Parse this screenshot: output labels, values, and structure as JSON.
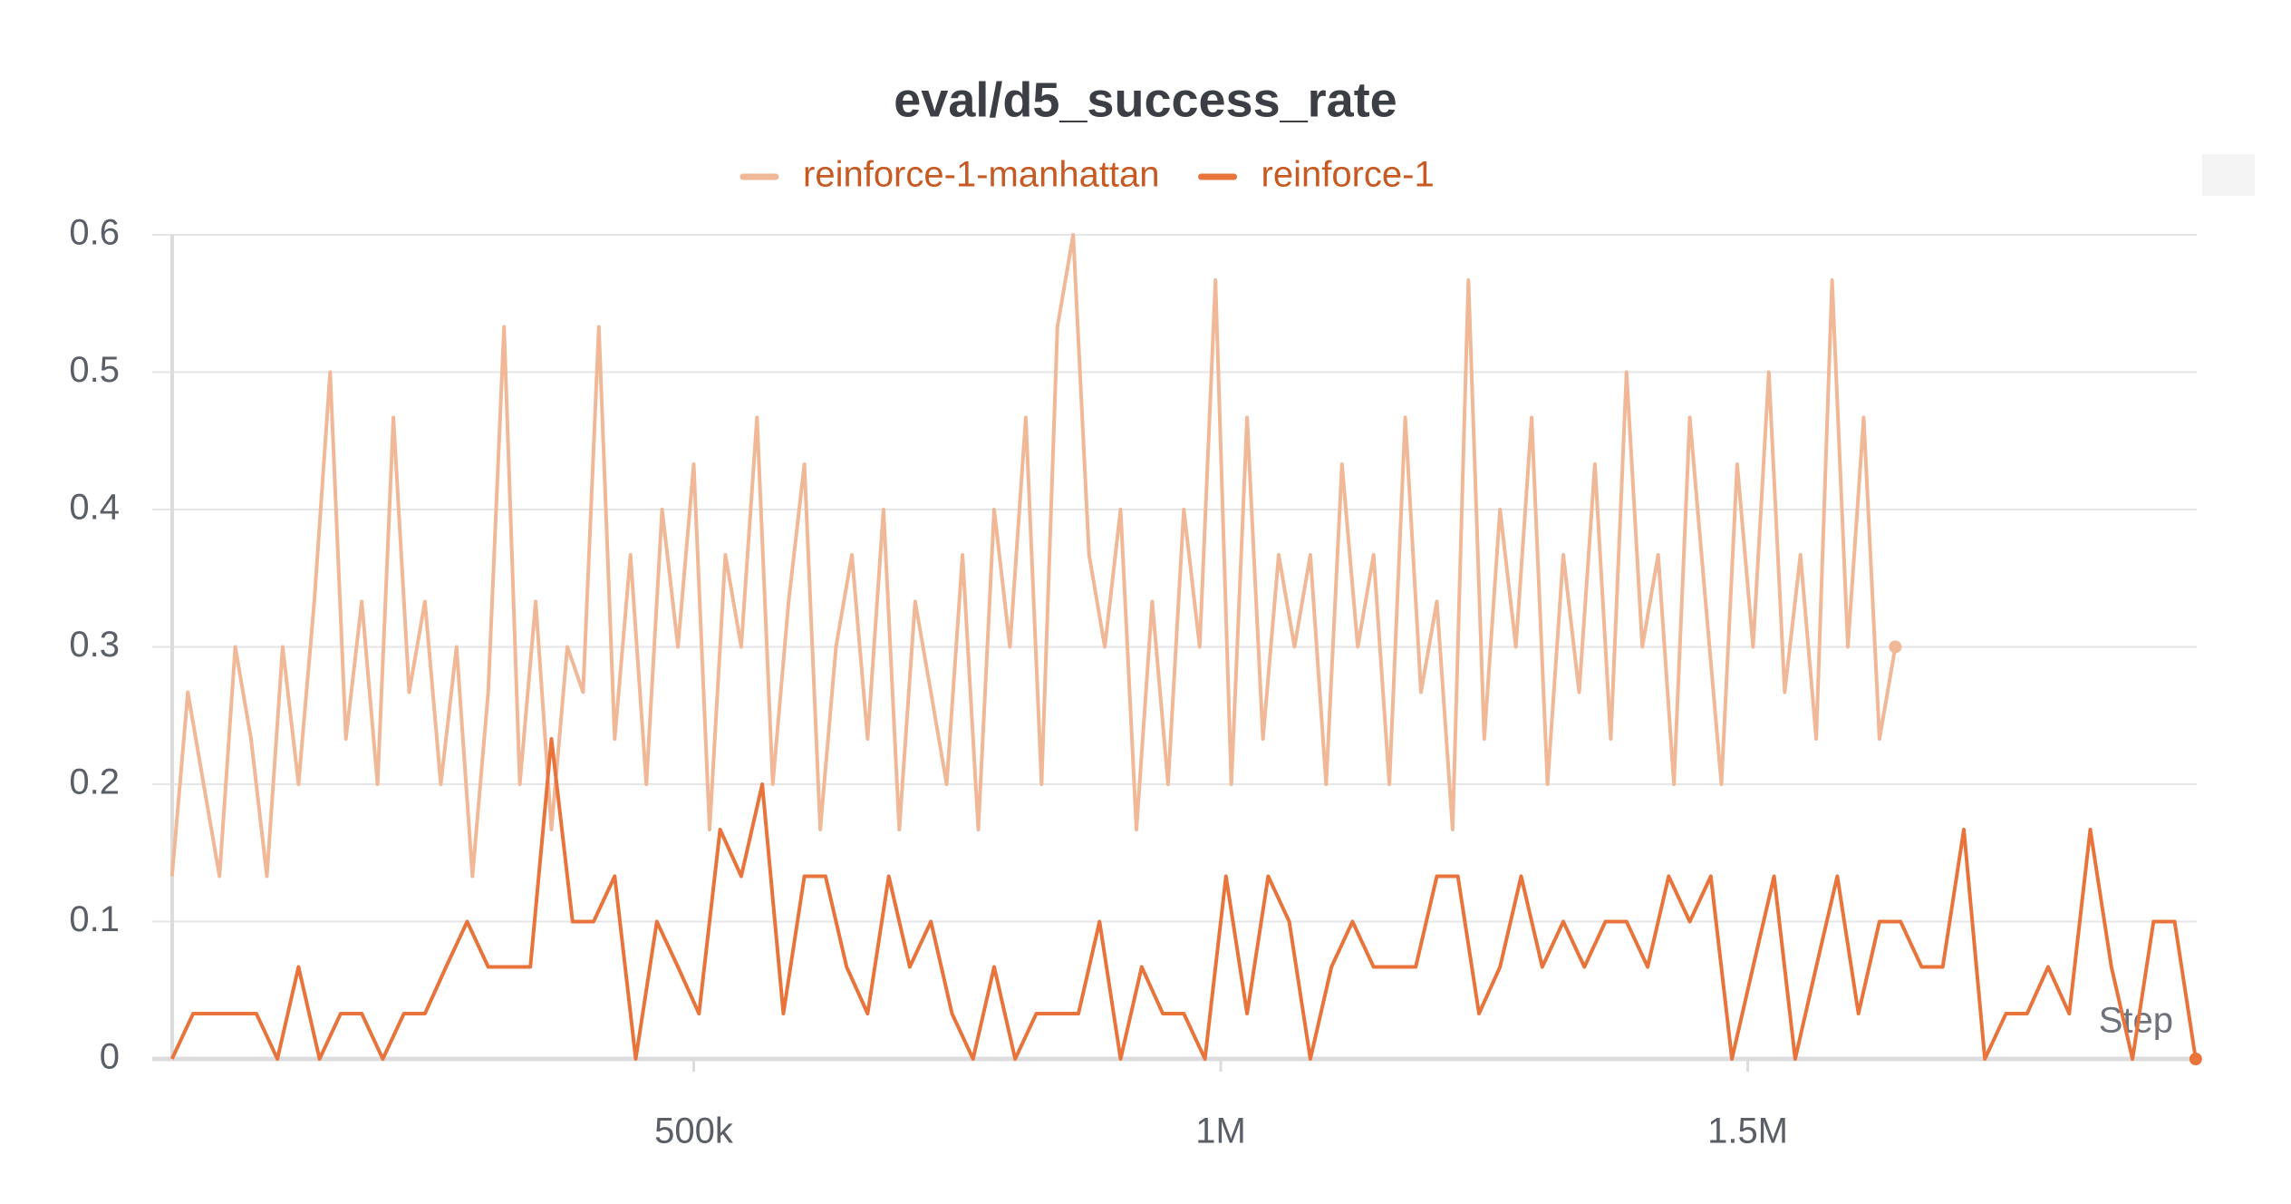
{
  "chart_data": {
    "type": "line",
    "title": "eval/d5_success_rate",
    "xlabel": "Step",
    "xlim": [
      0,
      1926000
    ],
    "ylim": [
      0,
      0.6
    ],
    "xticks": [
      {
        "value": 500000,
        "label": "500k"
      },
      {
        "value": 1000000,
        "label": "1M"
      },
      {
        "value": 1500000,
        "label": "1.5M"
      }
    ],
    "yticks": [
      0,
      0.1,
      0.2,
      0.3,
      0.4,
      0.5,
      0.6
    ],
    "grid": true,
    "legend": "top",
    "series": [
      {
        "name": "reinforce-1-manhattan",
        "color": "#f0b896",
        "x": [
          5000,
          20000,
          35000,
          50000,
          65000,
          80000,
          95000,
          110000,
          125000,
          140000,
          155000,
          170000,
          185000,
          200000,
          215000,
          230000,
          245000,
          260000,
          275000,
          290000,
          305000,
          320000,
          335000,
          350000,
          365000,
          380000,
          395000,
          410000,
          425000,
          440000,
          455000,
          470000,
          485000,
          500000,
          515000,
          530000,
          545000,
          560000,
          575000,
          590000,
          605000,
          620000,
          635000,
          650000,
          665000,
          680000,
          695000,
          710000,
          725000,
          740000,
          755000,
          770000,
          785000,
          800000,
          815000,
          830000,
          845000,
          860000,
          875000,
          890000,
          905000,
          920000,
          935000,
          950000,
          965000,
          980000,
          995000,
          1010000,
          1025000,
          1040000,
          1055000,
          1070000,
          1085000,
          1100000,
          1115000,
          1130000,
          1145000,
          1160000,
          1175000,
          1190000,
          1205000,
          1220000,
          1235000,
          1250000,
          1265000,
          1280000,
          1295000,
          1310000,
          1325000,
          1340000,
          1355000,
          1370000,
          1385000,
          1400000,
          1415000,
          1430000,
          1445000,
          1460000,
          1475000,
          1490000,
          1505000,
          1520000,
          1535000,
          1550000,
          1565000,
          1580000,
          1595000,
          1610000,
          1625000,
          1640000
        ],
        "values": [
          0.133,
          0.267,
          0.2,
          0.133,
          0.3,
          0.233,
          0.133,
          0.3,
          0.2,
          0.333,
          0.5,
          0.233,
          0.333,
          0.2,
          0.467,
          0.267,
          0.333,
          0.2,
          0.3,
          0.133,
          0.267,
          0.533,
          0.2,
          0.333,
          0.167,
          0.3,
          0.267,
          0.533,
          0.233,
          0.367,
          0.2,
          0.4,
          0.3,
          0.433,
          0.167,
          0.367,
          0.3,
          0.467,
          0.2,
          0.333,
          0.433,
          0.167,
          0.3,
          0.367,
          0.233,
          0.4,
          0.167,
          0.333,
          0.267,
          0.2,
          0.367,
          0.167,
          0.4,
          0.3,
          0.467,
          0.2,
          0.533,
          0.6,
          0.367,
          0.3,
          0.4,
          0.167,
          0.333,
          0.2,
          0.4,
          0.3,
          0.567,
          0.2,
          0.467,
          0.233,
          0.367,
          0.3,
          0.367,
          0.2,
          0.433,
          0.3,
          0.367,
          0.2,
          0.467,
          0.267,
          0.333,
          0.167,
          0.567,
          0.233,
          0.4,
          0.3,
          0.467,
          0.2,
          0.367,
          0.267,
          0.433,
          0.233,
          0.5,
          0.3,
          0.367,
          0.2,
          0.467,
          0.333,
          0.2,
          0.433,
          0.3,
          0.5,
          0.267,
          0.367,
          0.233,
          0.567,
          0.3,
          0.467,
          0.233,
          0.3
        ]
      },
      {
        "name": "reinforce-1",
        "color": "#e8743b",
        "x": [
          5000,
          25000,
          45000,
          65000,
          85000,
          105000,
          125000,
          145000,
          165000,
          185000,
          205000,
          225000,
          245000,
          265000,
          285000,
          305000,
          325000,
          345000,
          365000,
          385000,
          405000,
          425000,
          445000,
          465000,
          485000,
          505000,
          525000,
          545000,
          565000,
          585000,
          605000,
          625000,
          645000,
          665000,
          685000,
          705000,
          725000,
          745000,
          765000,
          785000,
          805000,
          825000,
          845000,
          865000,
          885000,
          905000,
          925000,
          945000,
          965000,
          985000,
          1005000,
          1025000,
          1045000,
          1065000,
          1085000,
          1105000,
          1125000,
          1145000,
          1165000,
          1185000,
          1205000,
          1225000,
          1245000,
          1265000,
          1285000,
          1305000,
          1325000,
          1345000,
          1365000,
          1385000,
          1405000,
          1425000,
          1445000,
          1465000,
          1485000,
          1505000,
          1525000,
          1545000,
          1565000,
          1585000,
          1605000,
          1625000,
          1645000,
          1665000,
          1685000,
          1705000,
          1725000,
          1745000,
          1765000,
          1785000,
          1805000,
          1825000,
          1845000,
          1865000,
          1885000,
          1905000,
          1925000
        ],
        "values": [
          0,
          0.033,
          0.033,
          0.033,
          0.033,
          0,
          0.067,
          0,
          0.033,
          0.033,
          0,
          0.033,
          0.033,
          0.067,
          0.1,
          0.067,
          0.067,
          0.067,
          0.233,
          0.1,
          0.1,
          0.133,
          0,
          0.1,
          0.067,
          0.033,
          0.167,
          0.133,
          0.2,
          0.033,
          0.133,
          0.133,
          0.067,
          0.033,
          0.133,
          0.067,
          0.1,
          0.033,
          0,
          0.067,
          0,
          0.033,
          0.033,
          0.033,
          0.1,
          0,
          0.067,
          0.033,
          0.033,
          0,
          0.133,
          0.033,
          0.133,
          0.1,
          0,
          0.067,
          0.1,
          0.067,
          0.067,
          0.067,
          0.133,
          0.133,
          0.033,
          0.067,
          0.133,
          0.067,
          0.1,
          0.067,
          0.1,
          0.1,
          0.067,
          0.133,
          0.1,
          0.133,
          0,
          0.067,
          0.133,
          0,
          0.067,
          0.133,
          0.033,
          0.1,
          0.1,
          0.067,
          0.067,
          0.167,
          0,
          0.033,
          0.033,
          0.067,
          0.033,
          0.167,
          0.067,
          0,
          0.1,
          0.1,
          0
        ]
      }
    ]
  }
}
